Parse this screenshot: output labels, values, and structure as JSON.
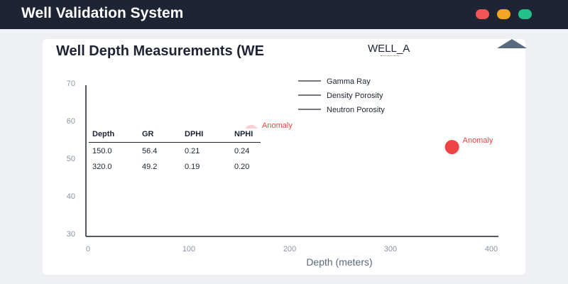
{
  "app": {
    "title": "Well Validation System",
    "window_controls": [
      "close",
      "minimize",
      "maximize"
    ],
    "colors": {
      "close": "#f25454",
      "minimize": "#f5a524",
      "maximize": "#22c08a",
      "titlebar": "#1e2433"
    }
  },
  "panel": {
    "title": "Well Depth Measurements (WE",
    "well_select": {
      "value": "WELL_A"
    },
    "collapse_icon": "triangle-up-icon"
  },
  "chart_data": {
    "type": "scatter",
    "xlabel": "Depth (meters)",
    "ylabel": "",
    "xlim": [
      0,
      400
    ],
    "ylim": [
      30,
      70
    ],
    "x_ticks": [
      "0",
      "100",
      "200",
      "300",
      "400"
    ],
    "y_ticks": [
      "70",
      "60",
      "50",
      "40",
      "30"
    ],
    "legend": [
      "Gamma Ray",
      "Density Porosity",
      "Neutron Porosity"
    ],
    "legend_position": "top-right",
    "anomalies": [
      {
        "x": 162,
        "y": 57,
        "label": "Anomaly"
      },
      {
        "x": 361,
        "y": 53,
        "label": "Anomaly"
      }
    ],
    "table": {
      "headers": [
        "Depth",
        "GR",
        "DPHI",
        "NPHI"
      ],
      "rows": [
        [
          "150.0",
          "56.4",
          "0.21",
          "0.24"
        ],
        [
          "320.0",
          "49.2",
          "0.19",
          "0.20"
        ]
      ]
    },
    "anomaly_color": "#ef4444"
  }
}
